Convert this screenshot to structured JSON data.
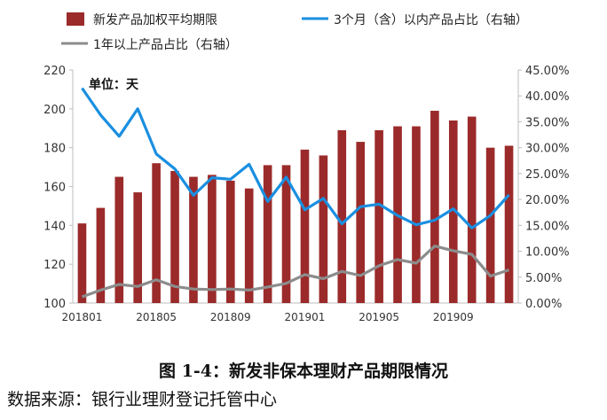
{
  "figure": {
    "caption": "图 1-4：新发非保本理财产品期限情况",
    "source": "数据来源：银行业理财登记托管中心"
  },
  "chart_data": {
    "type": "bar",
    "unit_note": "单位：天",
    "x": [
      "201801",
      "201802",
      "201803",
      "201804",
      "201805",
      "201806",
      "201807",
      "201808",
      "201809",
      "201810",
      "201811",
      "201812",
      "201901",
      "201902",
      "201903",
      "201904",
      "201905",
      "201906",
      "201907",
      "201908",
      "201909",
      "201910",
      "201911",
      "201912"
    ],
    "x_tick_labels": [
      "201801",
      "201805",
      "201809",
      "201901",
      "201905",
      "201909"
    ],
    "ylim_left": [
      100,
      220
    ],
    "yticks_left": [
      100,
      120,
      140,
      160,
      180,
      200,
      220
    ],
    "ylim_right": [
      0,
      45
    ],
    "yticks_right": [
      "0.00%",
      "5.00%",
      "10.00%",
      "15.00%",
      "20.00%",
      "25.00%",
      "30.00%",
      "35.00%",
      "40.00%",
      "45.00%"
    ],
    "legend_placement": "top",
    "grid": false,
    "series": [
      {
        "name": "新发产品加权平均期限",
        "type": "bar",
        "axis": "left",
        "color": "#9b2a2a",
        "values": [
          141,
          149,
          165,
          157,
          172,
          168,
          165,
          166,
          163,
          159,
          171,
          171,
          179,
          176,
          189,
          183,
          189,
          191,
          191,
          199,
          194,
          196,
          180,
          181
        ]
      },
      {
        "name": "3个月（含）以内产品占比（右轴）",
        "type": "line",
        "axis": "right",
        "color": "#1a8fe0",
        "values": [
          41.5,
          36.3,
          32.2,
          37.5,
          28.8,
          25.9,
          20.8,
          24.2,
          23.9,
          26.8,
          19.6,
          24.3,
          18.0,
          20.2,
          15.3,
          18.6,
          19.1,
          16.9,
          15.1,
          16.0,
          18.2,
          14.5,
          16.9,
          20.9
        ]
      },
      {
        "name": "1年以上产品占比（右轴）",
        "type": "line",
        "axis": "right",
        "color": "#8c8c8c",
        "values": [
          1.2,
          2.5,
          3.6,
          3.2,
          4.5,
          3.2,
          2.7,
          2.6,
          2.7,
          2.5,
          3.1,
          3.8,
          5.5,
          4.7,
          6.1,
          5.3,
          7.2,
          8.4,
          7.7,
          11.0,
          10.1,
          9.4,
          5.2,
          6.4
        ]
      }
    ]
  }
}
